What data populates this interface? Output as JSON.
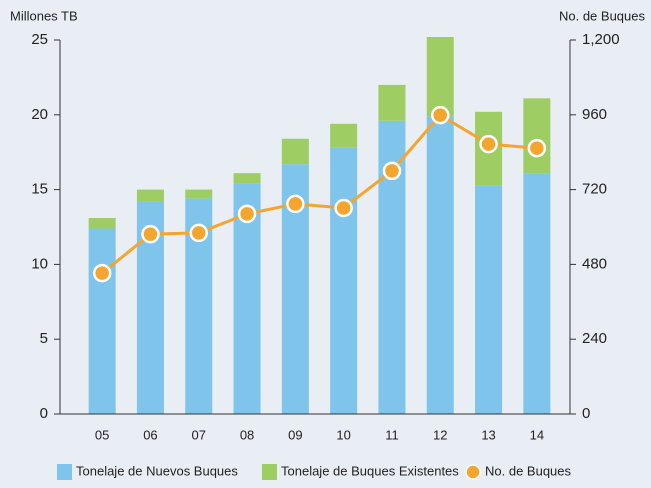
{
  "chart_data": {
    "type": "bar",
    "y_label": "Millones TB",
    "y2_label": "No. de Buques",
    "categories": [
      "05",
      "06",
      "07",
      "08",
      "09",
      "10",
      "11",
      "12",
      "13",
      "14"
    ],
    "series": [
      {
        "name": "Tonelaje de Nuevos Buques",
        "color": "#7fc4ea",
        "values": [
          12.4,
          14.2,
          14.4,
          15.4,
          16.7,
          17.8,
          19.6,
          19.9,
          15.3,
          16.1
        ]
      },
      {
        "name": "Tonelaje de Buques Existentes",
        "color": "#9dcd63",
        "values": [
          0.7,
          0.8,
          0.6,
          0.7,
          1.7,
          1.6,
          2.4,
          5.3,
          4.9,
          5.0
        ]
      },
      {
        "name": "No. de Buques",
        "color": "#f4a530",
        "type": "line",
        "axis": "y2",
        "values": [
          452,
          577,
          581,
          642,
          674,
          661,
          780,
          959,
          866,
          853
        ]
      }
    ],
    "stacked": true,
    "ylim": [
      0,
      25
    ],
    "yticks": [
      0,
      5,
      10,
      15,
      20,
      25
    ],
    "y2lim": [
      0,
      1200
    ],
    "y2ticks": [
      0,
      240,
      480,
      720,
      960,
      {
        "value": 1200,
        "label": "1,200"
      }
    ],
    "legend": "bottom"
  }
}
